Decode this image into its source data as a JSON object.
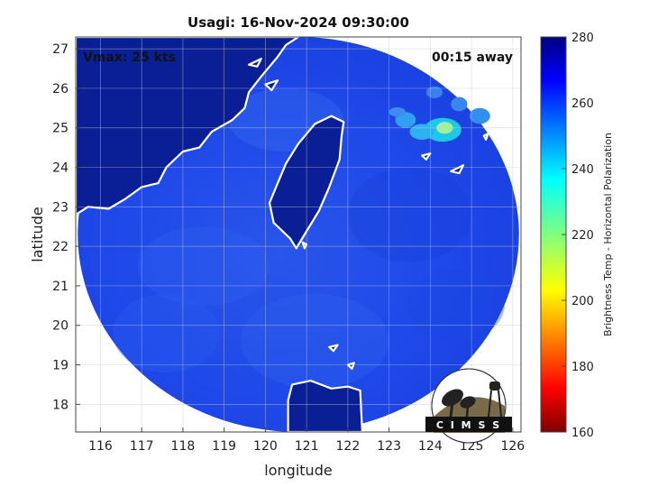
{
  "chart_data": {
    "type": "heatmap",
    "title": "Usagi: 16-Nov-2024 09:30:00",
    "xlabel": "longitude",
    "ylabel": "latitude",
    "xlim": [
      115.4,
      126.2
    ],
    "ylim": [
      17.3,
      27.3
    ],
    "x_ticks": [
      116,
      117,
      118,
      119,
      120,
      121,
      122,
      123,
      124,
      125,
      126
    ],
    "y_ticks": [
      18,
      19,
      20,
      21,
      22,
      23,
      24,
      25,
      26,
      27
    ],
    "grid": true,
    "annotations": {
      "top_left": "Vmax: 25 kts",
      "top_right": "00:15 away"
    },
    "colorbar": {
      "label": "Brightness Temp - Horizontal Polarization",
      "range": [
        160,
        280
      ],
      "ticks": [
        160,
        180,
        200,
        220,
        240,
        260,
        280
      ],
      "colormap": "jet"
    },
    "swath": {
      "center": [
        120.8,
        22.3
      ],
      "lon_radius": 5.35,
      "lat_radius": 5.0
    },
    "features": [
      {
        "name": "Taiwan",
        "tb": 280
      },
      {
        "name": "Mainland China coast",
        "tb": 280
      },
      {
        "name": "Luzon",
        "tb": 280
      },
      {
        "name": "Convective cells NE of Taiwan",
        "tb": 240
      }
    ]
  },
  "logo": {
    "text": "CIMSS"
  },
  "colors": {
    "ocean": "#1c45e6",
    "land": "#0a1f96",
    "coast": "#ffffff",
    "grid": "#c8c8c8"
  }
}
